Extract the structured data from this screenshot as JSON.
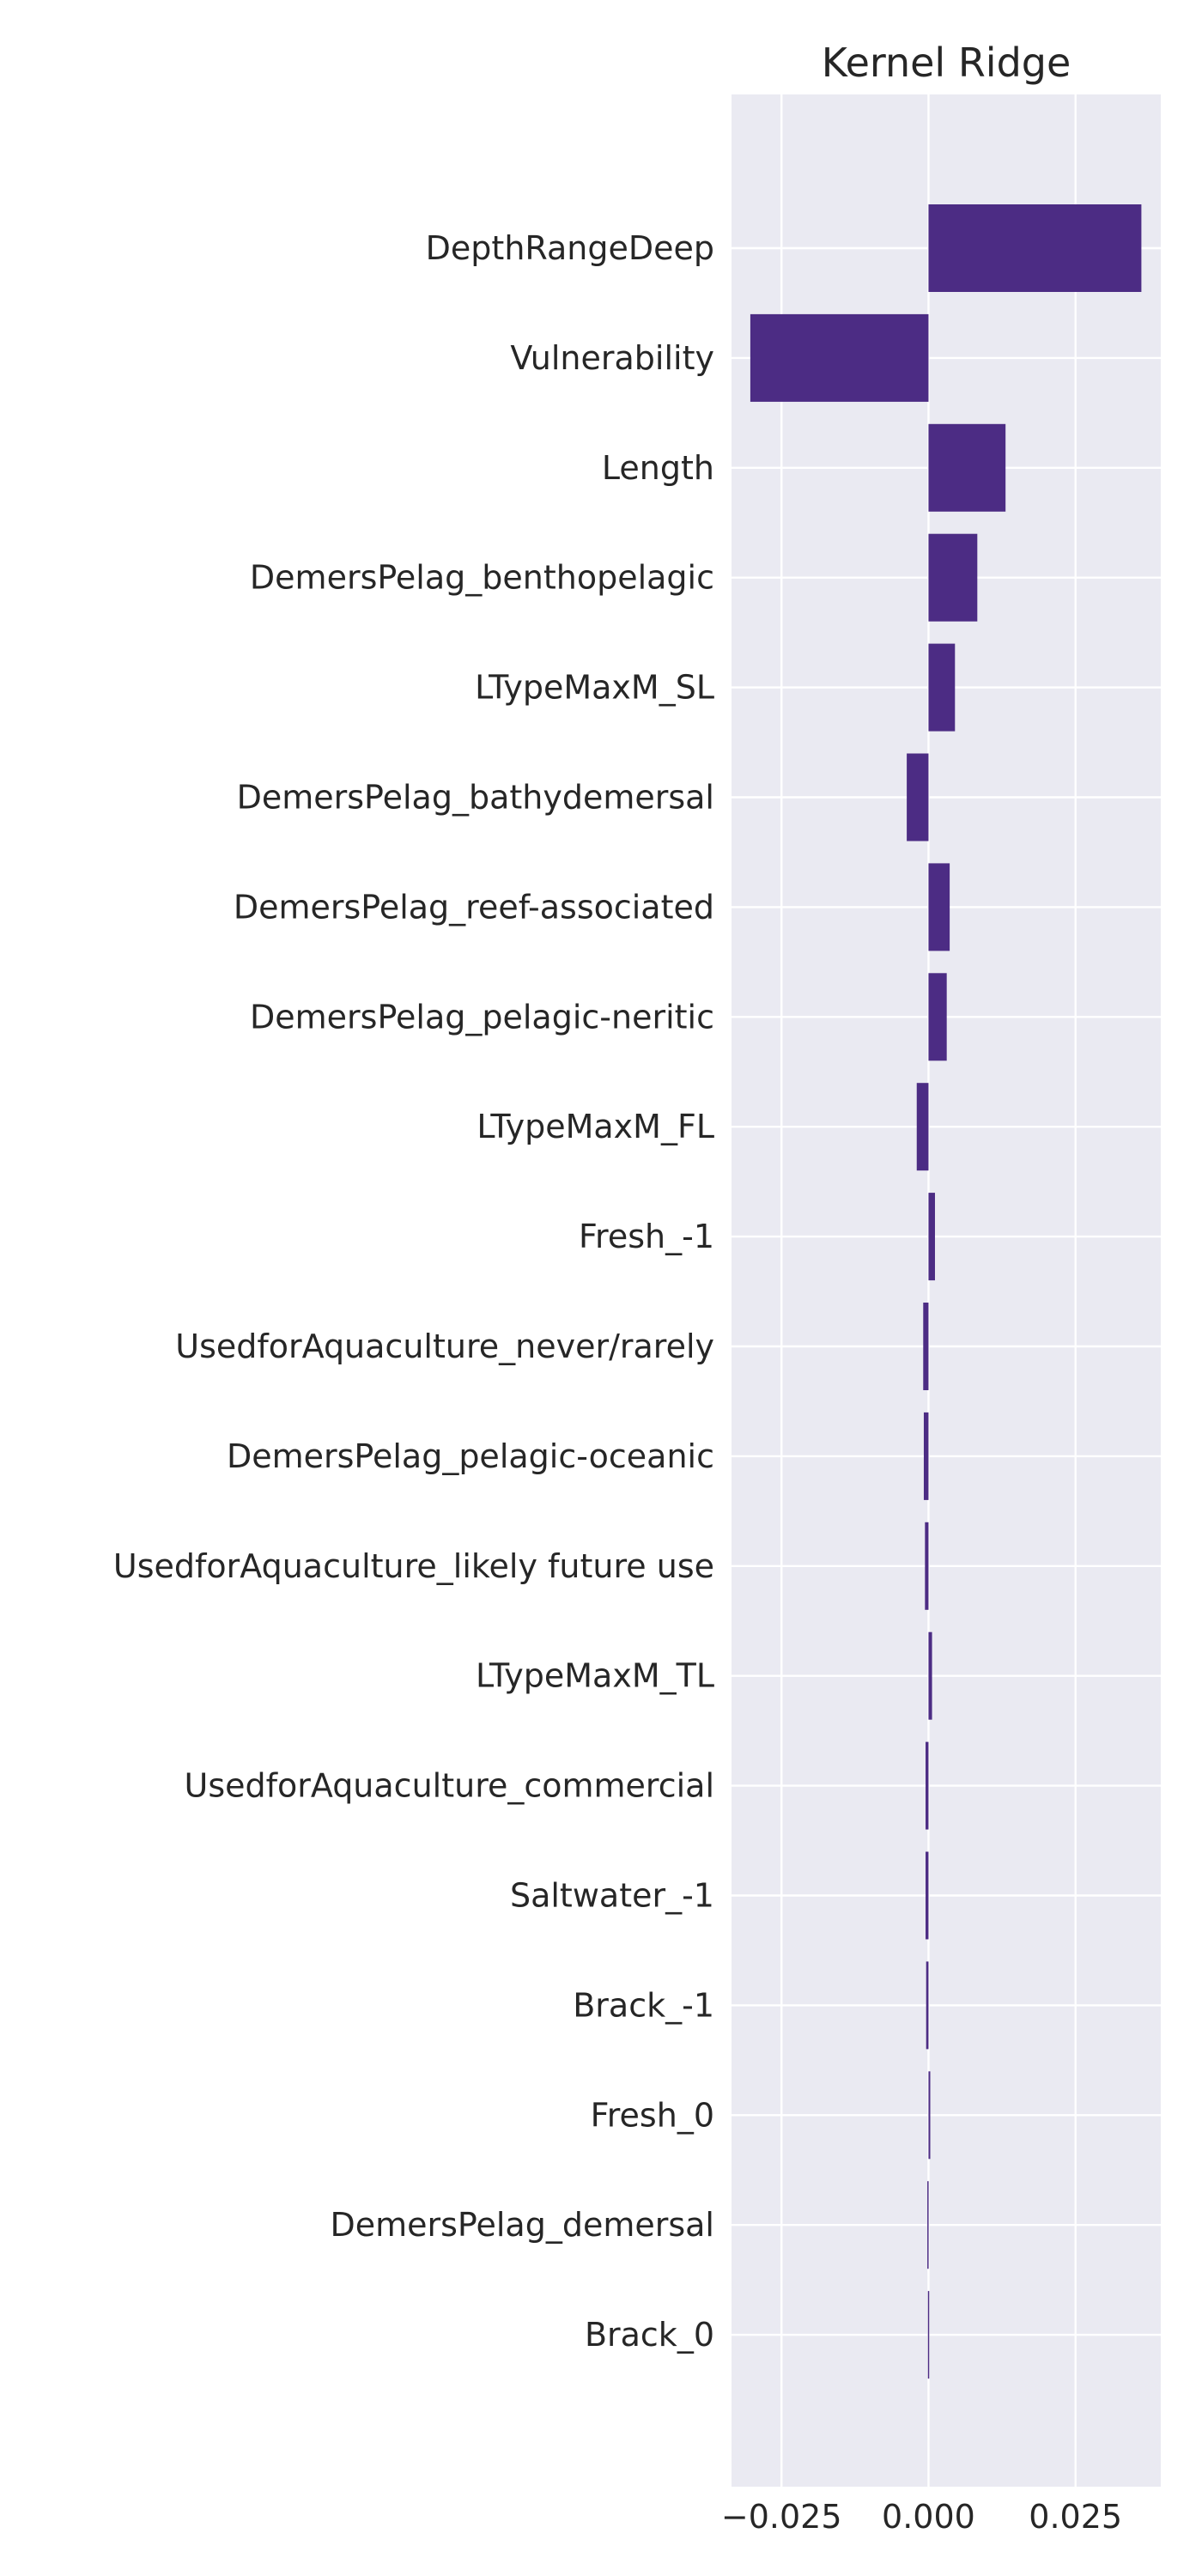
{
  "chart_data": {
    "type": "bar",
    "orientation": "horizontal",
    "title": "Kernel Ridge",
    "xlabel": "",
    "ylabel": "",
    "xlim": [
      -0.0335,
      0.0395
    ],
    "xticks": [
      -0.025,
      0.0,
      0.025
    ],
    "xtick_labels": [
      "−0.025",
      "0.000",
      "0.025"
    ],
    "grid": true,
    "bar_color": "#4c2c84",
    "categories": [
      "DepthRangeDeep",
      "Vulnerability",
      "Length",
      "DemersPelag_benthopelagic",
      "LTypeMaxM_SL",
      "DemersPelag_bathydemersal",
      "DemersPelag_reef-associated",
      "DemersPelag_pelagic-neritic",
      "LTypeMaxM_FL",
      "Fresh_-1",
      "UsedforAquaculture_never/rarely",
      "DemersPelag_pelagic-oceanic",
      "UsedforAquaculture_likely future use",
      "LTypeMaxM_TL",
      "UsedforAquaculture_commercial",
      "Saltwater_-1",
      "Brack_-1",
      "Fresh_0",
      "DemersPelag_demersal",
      "Brack_0"
    ],
    "values": [
      0.0362,
      -0.0303,
      0.0131,
      0.0083,
      0.0045,
      -0.0037,
      0.0036,
      0.0031,
      -0.002,
      0.0011,
      -0.0009,
      -0.0008,
      -0.0006,
      0.0006,
      -0.0005,
      -0.0005,
      -0.0004,
      0.0003,
      -0.0002,
      -0.0001
    ]
  }
}
